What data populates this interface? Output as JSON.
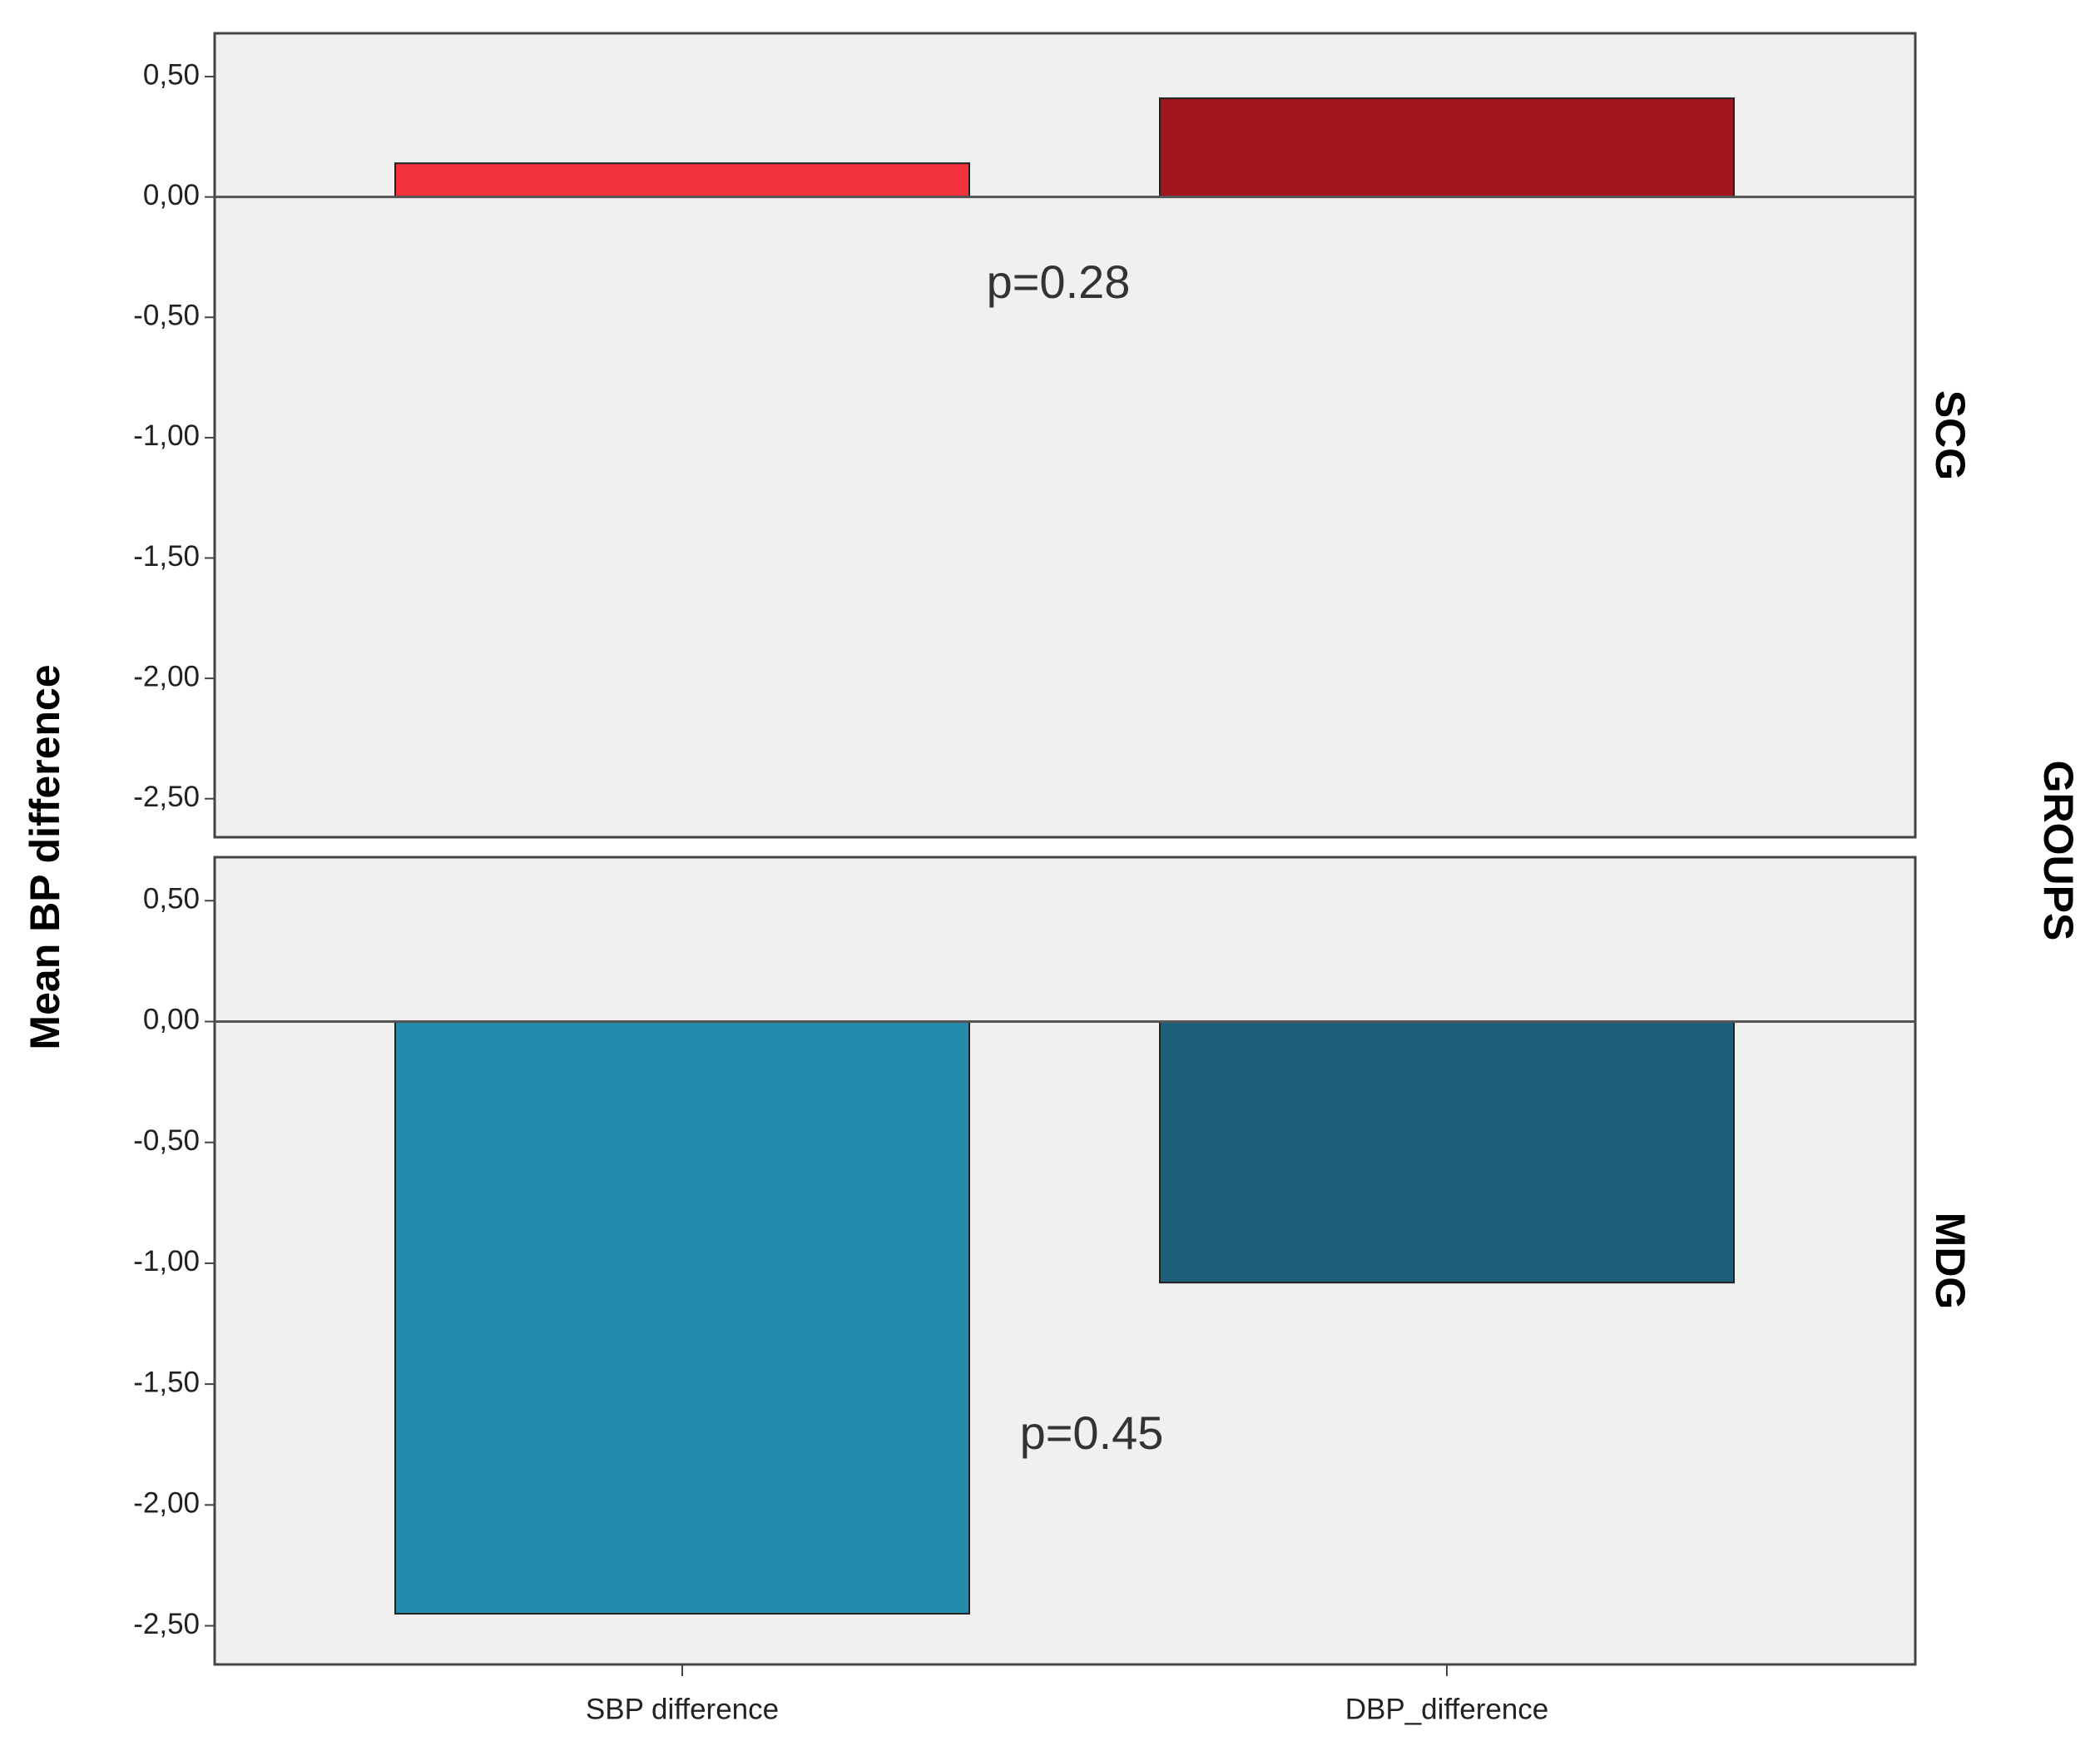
{
  "chart_data": {
    "type": "bar",
    "y_label": "Mean BP difference",
    "facet_label": "GROUPS",
    "categories": [
      "SBP difference",
      "DBP_difference"
    ],
    "ylim": [
      -2.66,
      0.68
    ],
    "yticks": [
      {
        "value": 0.5,
        "label": "0,50"
      },
      {
        "value": 0,
        "label": "0,00"
      },
      {
        "value": -0.5,
        "label": "-0,50"
      },
      {
        "value": -1,
        "label": "-1,00"
      },
      {
        "value": -1.5,
        "label": "-1,50"
      },
      {
        "value": -2,
        "label": "-2,00"
      },
      {
        "value": -2.5,
        "label": "-2,50"
      }
    ],
    "panels": [
      {
        "name": "SCG",
        "values": [
          0.14,
          0.41
        ],
        "colors": [
          "#f2323a",
          "#a0161c"
        ],
        "annotation": "p=0.28"
      },
      {
        "name": "MDG",
        "values": [
          -2.45,
          -1.08
        ],
        "colors": [
          "#258bad",
          "#1d5f78"
        ],
        "annotation": "p=0.45"
      }
    ]
  }
}
